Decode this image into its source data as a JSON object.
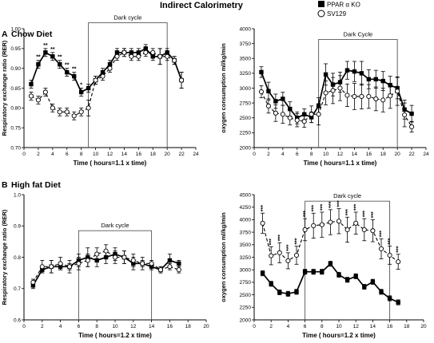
{
  "figure": {
    "title": "Indirect Calorimetry",
    "legend": [
      {
        "label": "PPAR α KO",
        "marker": "filled-square",
        "line": "solid"
      },
      {
        "label": "SV129",
        "marker": "open-circle",
        "line": "dashed"
      }
    ],
    "sections": [
      {
        "letter": "A",
        "label": "Chow  Diet"
      },
      {
        "letter": "B",
        "label": "High fat  Diet"
      }
    ]
  },
  "chart_data": [
    {
      "id": "chart_a_rer",
      "type": "line",
      "xlabel": "Time ( hours=1.1 x time)",
      "ylabel": "Respiratory exchange ratio (RER)",
      "xlim": [
        0,
        24
      ],
      "ylim": [
        0.7,
        1.0
      ],
      "xticks": [
        0,
        2,
        4,
        6,
        8,
        10,
        12,
        14,
        16,
        18,
        20,
        22,
        24
      ],
      "yticks": [
        0.7,
        0.75,
        0.8,
        0.85,
        0.9,
        0.95,
        1.0
      ],
      "ytick_labels": [
        "0.70",
        "0.75",
        "0.80",
        "0.85",
        "0.90",
        "0.95",
        "1.00"
      ],
      "dark_cycle": {
        "label": "Dark cycle",
        "x": [
          9,
          20
        ],
        "top": 1.015
      },
      "series": [
        {
          "name": "PPAR α KO",
          "x": [
            1,
            2,
            3,
            4,
            5,
            6,
            7,
            8,
            9,
            10,
            11,
            12,
            13,
            14,
            15,
            16,
            17,
            18,
            19,
            20,
            21,
            22
          ],
          "y": [
            0.86,
            0.91,
            0.94,
            0.93,
            0.91,
            0.89,
            0.88,
            0.84,
            0.85,
            0.87,
            0.89,
            0.91,
            0.94,
            0.94,
            0.94,
            0.94,
            0.95,
            0.93,
            0.93,
            0.94,
            0.92,
            0.87
          ],
          "err": [
            0.01,
            0.01,
            0.01,
            0.01,
            0.01,
            0.01,
            0.01,
            0.01,
            0.01,
            0.01,
            0.01,
            0.01,
            0.01,
            0.01,
            0.01,
            0.01,
            0.01,
            0.01,
            0.02,
            0.01,
            0.01,
            0.02
          ]
        },
        {
          "name": "SV129",
          "x": [
            1,
            2,
            3,
            4,
            5,
            6,
            7,
            8,
            9,
            10,
            11,
            12,
            13,
            14,
            15,
            16,
            17,
            18,
            19,
            20,
            21,
            22
          ],
          "y": [
            0.83,
            0.82,
            0.84,
            0.8,
            0.79,
            0.79,
            0.78,
            0.79,
            0.8,
            0.87,
            0.88,
            0.9,
            0.93,
            0.94,
            0.93,
            0.93,
            0.94,
            0.94,
            0.93,
            0.93,
            0.92,
            0.87
          ],
          "err": [
            0.01,
            0.01,
            0.01,
            0.01,
            0.01,
            0.01,
            0.01,
            0.01,
            0.02,
            0.01,
            0.01,
            0.01,
            0.01,
            0.01,
            0.01,
            0.01,
            0.01,
            0.01,
            0.02,
            0.01,
            0.01,
            0.02
          ]
        }
      ],
      "significance": [
        {
          "x": 2,
          "label": "**"
        },
        {
          "x": 3,
          "label": "**"
        },
        {
          "x": 4,
          "label": "**"
        },
        {
          "x": 5,
          "label": "**"
        },
        {
          "x": 6,
          "label": "**"
        },
        {
          "x": 7,
          "label": "**"
        },
        {
          "x": 8,
          "label": "*"
        }
      ]
    },
    {
      "id": "chart_a_vo2",
      "type": "line",
      "xlabel": "Time ( hours=1.1 x time)",
      "ylabel": "oxygen consumption ml/kg/min",
      "xlim": [
        0,
        24
      ],
      "ylim": [
        2000,
        4000
      ],
      "xticks": [
        0,
        2,
        4,
        6,
        8,
        10,
        12,
        14,
        16,
        18,
        20,
        22,
        24
      ],
      "yticks": [
        2000,
        2250,
        2500,
        2750,
        3000,
        3250,
        3500,
        3750,
        4000
      ],
      "ytick_labels": [
        "2000",
        "2250",
        "2500",
        "2750",
        "3000",
        "3250",
        "3500",
        "3750",
        "4000"
      ],
      "dark_cycle": {
        "label": "Dark Cycle",
        "x": [
          9,
          20
        ],
        "top": 3820
      },
      "series": [
        {
          "name": "PPAR α KO",
          "x": [
            1,
            2,
            3,
            4,
            5,
            6,
            7,
            8,
            9,
            10,
            11,
            12,
            13,
            14,
            15,
            16,
            17,
            18,
            19,
            20,
            21,
            22
          ],
          "y": [
            3270,
            2950,
            2780,
            2820,
            2650,
            2500,
            2560,
            2510,
            2700,
            3230,
            3060,
            3100,
            3300,
            3280,
            3250,
            3150,
            3150,
            3120,
            3050,
            3000,
            2640,
            2570
          ],
          "err": [
            90,
            150,
            120,
            110,
            120,
            100,
            90,
            90,
            140,
            180,
            190,
            170,
            150,
            170,
            200,
            160,
            150,
            160,
            150,
            180,
            160,
            140
          ]
        },
        {
          "name": "SV129",
          "x": [
            1,
            2,
            3,
            4,
            5,
            6,
            7,
            8,
            9,
            10,
            11,
            12,
            13,
            14,
            15,
            16,
            17,
            18,
            19,
            20,
            21,
            22
          ],
          "y": [
            2940,
            2700,
            2580,
            2560,
            2500,
            2460,
            2440,
            2560,
            2560,
            2920,
            2960,
            3000,
            2880,
            2860,
            2860,
            2860,
            2820,
            2800,
            2870,
            2950,
            2550,
            2350
          ],
          "err": [
            100,
            120,
            140,
            150,
            120,
            110,
            100,
            140,
            180,
            200,
            220,
            210,
            190,
            220,
            210,
            200,
            200,
            200,
            210,
            240,
            200,
            90
          ]
        }
      ],
      "significance": []
    },
    {
      "id": "chart_b_rer",
      "type": "line",
      "xlabel": "Time ( hours=1.2 x time)",
      "ylabel": "Respiratory exchange ratio (RER)",
      "xlim": [
        0,
        20
      ],
      "ylim": [
        0.6,
        1.0
      ],
      "xticks": [
        0,
        2,
        4,
        6,
        8,
        10,
        12,
        14,
        16,
        18,
        20
      ],
      "yticks": [
        0.6,
        0.7,
        0.8,
        0.9,
        1.0
      ],
      "ytick_labels": [
        "0.6",
        "0.7",
        "0.8",
        "0.9",
        "1.0"
      ],
      "dark_cycle": {
        "label": "Dark cycle",
        "x": [
          6,
          14
        ],
        "top": 0.885
      },
      "series": [
        {
          "name": "PPAR α KO",
          "x": [
            1,
            2,
            3,
            4,
            5,
            6,
            7,
            8,
            9,
            10,
            11,
            12,
            13,
            14,
            15,
            16,
            17
          ],
          "y": [
            0.71,
            0.76,
            0.77,
            0.77,
            0.77,
            0.79,
            0.8,
            0.79,
            0.8,
            0.81,
            0.8,
            0.78,
            0.78,
            0.77,
            0.76,
            0.79,
            0.78
          ],
          "err": [
            0.01,
            0.01,
            0.02,
            0.01,
            0.02,
            0.02,
            0.03,
            0.02,
            0.02,
            0.02,
            0.02,
            0.02,
            0.01,
            0.01,
            0.01,
            0.02,
            0.01
          ]
        },
        {
          "name": "SV129",
          "x": [
            1,
            2,
            3,
            4,
            5,
            6,
            7,
            8,
            9,
            10,
            11,
            12,
            13,
            14,
            15,
            16,
            17
          ],
          "y": [
            0.72,
            0.77,
            0.77,
            0.78,
            0.77,
            0.78,
            0.79,
            0.81,
            0.82,
            0.8,
            0.8,
            0.79,
            0.78,
            0.78,
            0.76,
            0.77,
            0.76
          ],
          "err": [
            0.01,
            0.02,
            0.02,
            0.02,
            0.01,
            0.02,
            0.02,
            0.02,
            0.02,
            0.02,
            0.02,
            0.02,
            0.02,
            0.01,
            0.01,
            0.01,
            0.01
          ]
        }
      ],
      "significance": []
    },
    {
      "id": "chart_b_vo2",
      "type": "line",
      "xlabel": "Time ( hours=1.2 x time)",
      "ylabel": "oxygen consumption ml/kg/min",
      "xlim": [
        0,
        20
      ],
      "ylim": [
        2000,
        4500
      ],
      "xticks": [
        0,
        2,
        4,
        6,
        8,
        10,
        12,
        14,
        16,
        18,
        20
      ],
      "yticks": [
        2000,
        2250,
        2500,
        2750,
        3000,
        3250,
        3500,
        3750,
        4000,
        4250,
        4500
      ],
      "ytick_labels": [
        "2000",
        "2250",
        "2500",
        "2750",
        "3000",
        "3250",
        "3500",
        "3750",
        "4000",
        "4250",
        "4500"
      ],
      "dark_cycle": {
        "label": "Dark cycle",
        "x": [
          6,
          16
        ],
        "top": 4370
      },
      "series": [
        {
          "name": "PPAR α KO",
          "x": [
            1,
            2,
            3,
            4,
            5,
            6,
            7,
            8,
            9,
            10,
            11,
            12,
            13,
            14,
            15,
            16,
            17
          ],
          "y": [
            2930,
            2720,
            2550,
            2520,
            2560,
            2960,
            2960,
            2960,
            3120,
            2900,
            2800,
            2870,
            2660,
            2760,
            2560,
            2430,
            2350
          ],
          "err": [
            50,
            50,
            50,
            50,
            50,
            50,
            50,
            50,
            50,
            50,
            50,
            50,
            50,
            50,
            50,
            50,
            50
          ]
        },
        {
          "name": "SV129",
          "x": [
            1,
            2,
            3,
            4,
            5,
            6,
            7,
            8,
            9,
            10,
            11,
            12,
            13,
            14,
            15,
            16,
            17
          ],
          "y": [
            3930,
            3280,
            3340,
            3180,
            3290,
            3800,
            3880,
            3900,
            3950,
            3970,
            3800,
            3930,
            3800,
            3780,
            3420,
            3290,
            3160
          ],
          "err": [
            200,
            180,
            200,
            160,
            180,
            220,
            250,
            250,
            250,
            250,
            250,
            220,
            220,
            220,
            200,
            180,
            150
          ]
        }
      ],
      "significance": [
        {
          "x": 1,
          "label": "***"
        },
        {
          "x": 2,
          "label": "***"
        },
        {
          "x": 3,
          "label": "***"
        },
        {
          "x": 4,
          "label": "***"
        },
        {
          "x": 5,
          "label": "***"
        },
        {
          "x": 6,
          "label": "***"
        },
        {
          "x": 7,
          "label": "***"
        },
        {
          "x": 8,
          "label": "***"
        },
        {
          "x": 9,
          "label": "***"
        },
        {
          "x": 10,
          "label": "***"
        },
        {
          "x": 11,
          "label": "***"
        },
        {
          "x": 12,
          "label": "***"
        },
        {
          "x": 13,
          "label": "***"
        },
        {
          "x": 14,
          "label": "***"
        },
        {
          "x": 15,
          "label": "***"
        },
        {
          "x": 16,
          "label": "***"
        },
        {
          "x": 17,
          "label": "***"
        }
      ]
    }
  ]
}
